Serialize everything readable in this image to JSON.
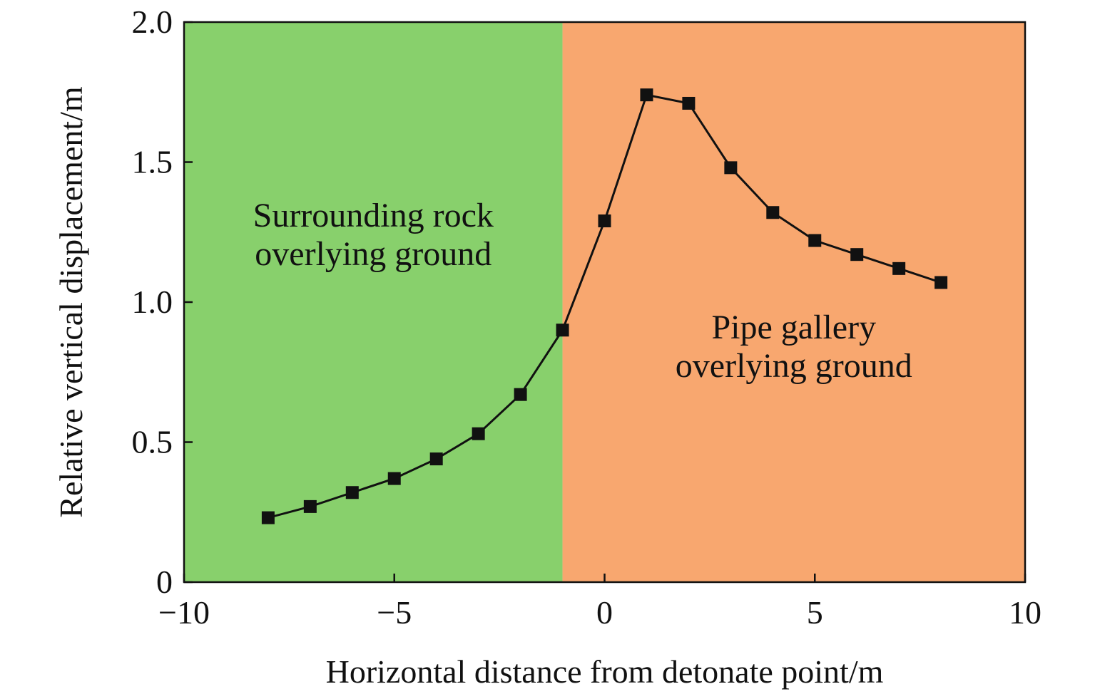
{
  "chart_data": {
    "type": "line",
    "title": "",
    "xlabel": "Horizontal distance from detonate point/m",
    "ylabel": "Relative vertical displacement/m",
    "xlim": [
      -10,
      10
    ],
    "ylim": [
      0,
      2.0
    ],
    "x_ticks": [
      {
        "value": -10,
        "label": "−10"
      },
      {
        "value": -5,
        "label": "−5"
      },
      {
        "value": 0,
        "label": "0"
      },
      {
        "value": 5,
        "label": "5"
      },
      {
        "value": 10,
        "label": "10"
      }
    ],
    "y_ticks": [
      {
        "value": 0,
        "label": "0"
      },
      {
        "value": 0.5,
        "label": "0.5"
      },
      {
        "value": 1.0,
        "label": "1.0"
      },
      {
        "value": 1.5,
        "label": "1.5"
      },
      {
        "value": 2.0,
        "label": "2.0"
      }
    ],
    "grid": false,
    "regions": [
      {
        "x_start": -10,
        "x_end": -1,
        "color": "#88d06c",
        "label_lines": [
          "Surrounding rock",
          "overlying ground"
        ],
        "label_anchor": {
          "x": -5.5,
          "y": 1.27
        }
      },
      {
        "x_start": -1,
        "x_end": 10,
        "color": "#f8a76f",
        "label_lines": [
          "Pipe gallery",
          "overlying ground"
        ],
        "label_anchor": {
          "x": 4.5,
          "y": 0.87
        }
      }
    ],
    "series": [
      {
        "color": "#111111",
        "marker": "square",
        "x": [
          -8,
          -7,
          -6,
          -5,
          -4,
          -3,
          -2,
          -1,
          0,
          1,
          2,
          3,
          4,
          5,
          6,
          7,
          8
        ],
        "y": [
          0.23,
          0.27,
          0.32,
          0.37,
          0.44,
          0.53,
          0.67,
          0.9,
          1.29,
          1.74,
          1.71,
          1.48,
          1.32,
          1.22,
          1.17,
          1.12,
          1.07
        ]
      }
    ]
  }
}
